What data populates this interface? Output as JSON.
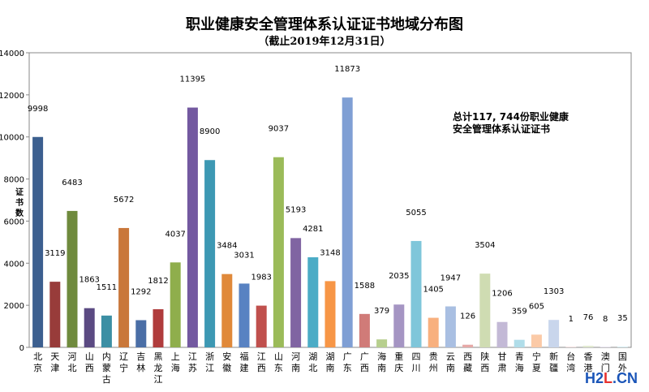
{
  "chart_data": {
    "type": "bar",
    "title": "职业健康安全管理体系认证证书地域分布图",
    "subtitle": "（截止2019年12月31日）",
    "ylabel": "证书数",
    "ylim": [
      0,
      14000
    ],
    "yticks": [
      0,
      2000,
      4000,
      6000,
      8000,
      10000,
      12000,
      14000
    ],
    "grid": false,
    "annotation": [
      "总计117, 744份职业健康",
      "安全管理体系认证证书"
    ],
    "categories": [
      "北京",
      "天津",
      "河北",
      "山西",
      "内蒙古",
      "辽宁",
      "吉林",
      "黑龙江",
      "上海",
      "江苏",
      "浙江",
      "安徽",
      "福建",
      "江西",
      "山东",
      "河南",
      "湖北",
      "湖南",
      "广东",
      "广西",
      "海南",
      "重庆",
      "四川",
      "贵州",
      "云南",
      "西藏",
      "陕西",
      "甘肃",
      "青海",
      "宁夏",
      "新疆",
      "台湾",
      "香港",
      "澳门",
      "国外"
    ],
    "values": [
      9998,
      3119,
      6483,
      1863,
      1511,
      5672,
      1292,
      1812,
      4037,
      11395,
      8900,
      3484,
      3031,
      1983,
      9037,
      5193,
      4281,
      3148,
      11873,
      1588,
      379,
      2035,
      5055,
      1405,
      1947,
      126,
      3504,
      1206,
      359,
      605,
      1303,
      1,
      76,
      8,
      35
    ],
    "colors": [
      "#3c5f8f",
      "#983c3a",
      "#6f8a3d",
      "#5b4a82",
      "#3c8fa4",
      "#c9773a",
      "#4a6ea6",
      "#b03c3c",
      "#8fae4c",
      "#7359a0",
      "#3d98b3",
      "#e0893a",
      "#5882c2",
      "#c0504d",
      "#9bbb59",
      "#8064a2",
      "#4bacc6",
      "#f79646",
      "#7f9fd4",
      "#d07b78",
      "#b7cf8e",
      "#a595c3",
      "#7fc6da",
      "#f8b07e",
      "#a9bfe2",
      "#e6a9a7",
      "#cfdcb2",
      "#c3b9d6",
      "#b0dde9",
      "#fbcaa7",
      "#c9d6ec",
      "#efcfce",
      "#e1e9d0",
      "#dcd6e8",
      "#d2ecf3"
    ]
  },
  "watermark": {
    "part1": "H2",
    "part2": "L",
    "part3": ".CN"
  }
}
